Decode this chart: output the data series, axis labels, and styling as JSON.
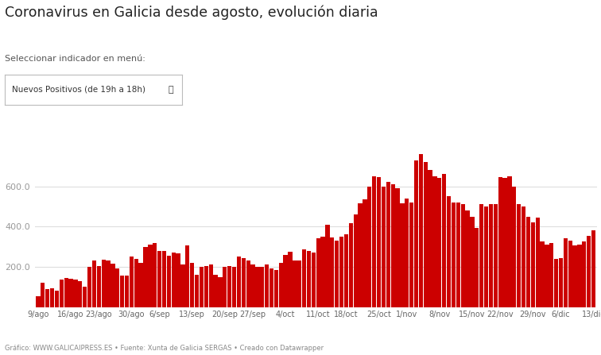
{
  "title": "Coronavirus en Galicia desde agosto, evolución diaria",
  "subtitle": "Seleccionar indicador en menú:",
  "dropdown_label": "Nuevos Positivos (de 19h a 18h)",
  "footer": "Gráfico: WWW.GALICAIPRESS.ES • Fuente: Xunta de Galicia SERGAS • Creado con Datawrapper",
  "bar_color": "#cc0000",
  "background_color": "#ffffff",
  "yticks": [
    200.0,
    400.0,
    600.0
  ],
  "grid_color": "#dddddd",
  "xtick_labels": [
    "9/ago",
    "16/ago",
    "23/ago",
    "30/ago",
    "6/sep",
    "13/sep",
    "20/sep",
    "27/sep",
    "4/oct",
    "11/oct",
    "18/oct",
    "25/oct",
    "1/nov",
    "8/nov",
    "15/nov",
    "22/nov",
    "29/nov",
    "6/dic",
    "13/dic"
  ],
  "values": [
    55,
    120,
    90,
    95,
    80,
    135,
    145,
    140,
    135,
    130,
    100,
    200,
    230,
    205,
    235,
    230,
    215,
    190,
    155,
    155,
    250,
    240,
    220,
    300,
    310,
    320,
    280,
    280,
    255,
    270,
    265,
    210,
    305,
    220,
    160,
    200,
    205,
    210,
    160,
    150,
    200,
    205,
    200,
    250,
    245,
    230,
    210,
    200,
    200,
    210,
    190,
    185,
    220,
    260,
    275,
    230,
    230,
    285,
    280,
    270,
    340,
    350,
    410,
    345,
    330,
    350,
    360,
    415,
    460,
    515,
    535,
    600,
    650,
    645,
    600,
    620,
    610,
    590,
    515,
    540,
    520,
    730,
    760,
    720,
    680,
    650,
    640,
    660,
    550,
    520,
    520,
    510,
    480,
    450,
    395,
    510,
    500,
    510,
    510,
    645,
    640,
    650,
    600,
    510,
    500,
    450,
    420,
    445,
    325,
    310,
    320,
    240,
    245,
    340,
    330,
    305,
    310,
    325,
    355,
    380
  ]
}
